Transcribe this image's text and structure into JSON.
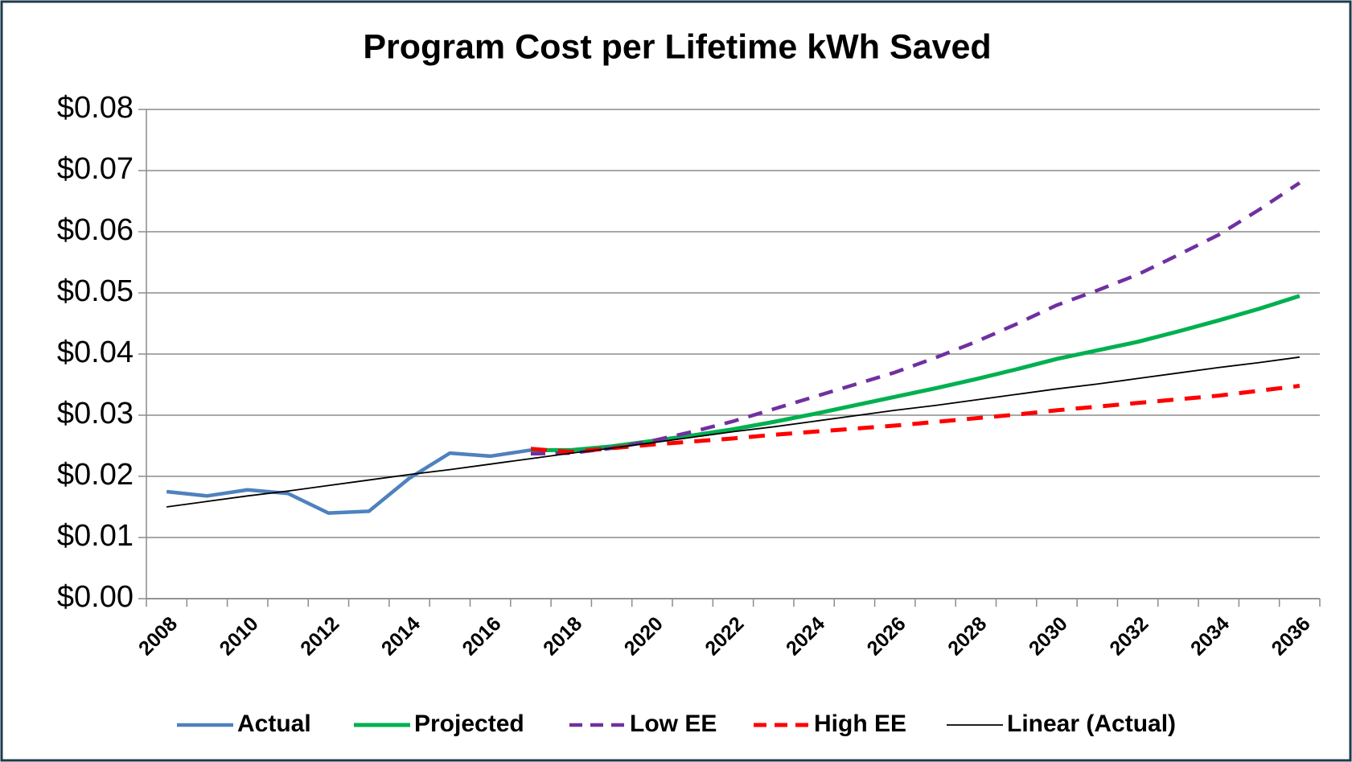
{
  "chart_data": {
    "type": "line",
    "title": "Program Cost per Lifetime kWh Saved",
    "categories": [
      "2008",
      null,
      "2010",
      null,
      "2012",
      null,
      "2014",
      null,
      "2016",
      null,
      "2018",
      null,
      "2020",
      null,
      "2022",
      null,
      "2024",
      null,
      "2026",
      null,
      "2028",
      null,
      "2030",
      null,
      "2032",
      null,
      "2034",
      null,
      "2036"
    ],
    "series": [
      {
        "name": "Actual",
        "color": "#4f81bd",
        "dashed": false,
        "linewidth": 4.5,
        "values": [
          0.0175,
          0.0168,
          0.0178,
          0.0172,
          0.014,
          0.0143,
          0.0197,
          0.0238,
          0.0233,
          0.0243,
          null,
          null,
          null,
          null,
          null,
          null,
          null,
          null,
          null,
          null,
          null,
          null,
          null,
          null,
          null,
          null,
          null,
          null,
          null
        ]
      },
      {
        "name": "Projected",
        "color": "#00b050",
        "dashed": false,
        "linewidth": 5,
        "values": [
          null,
          null,
          null,
          null,
          null,
          null,
          null,
          null,
          null,
          0.0243,
          0.0243,
          0.0249,
          0.0258,
          0.0267,
          0.0277,
          0.0289,
          0.0302,
          0.0316,
          0.033,
          0.0344,
          0.0359,
          0.0375,
          0.0392,
          0.0406,
          0.042,
          0.0437,
          0.0455,
          0.0474,
          0.0495
        ]
      },
      {
        "name": "Low EE",
        "color": "#7030a0",
        "dashed": true,
        "linewidth": 4.5,
        "values": [
          null,
          null,
          null,
          null,
          null,
          null,
          null,
          null,
          null,
          0.0237,
          0.0238,
          0.0246,
          0.0258,
          0.0273,
          0.029,
          0.031,
          0.033,
          0.035,
          0.037,
          0.0394,
          0.042,
          0.0449,
          0.048,
          0.0504,
          0.053,
          0.0562,
          0.0595,
          0.0636,
          0.068
        ]
      },
      {
        "name": "High EE",
        "color": "#ff0000",
        "dashed": true,
        "linewidth": 5,
        "values": [
          null,
          null,
          null,
          null,
          null,
          null,
          null,
          null,
          null,
          0.0245,
          0.024,
          0.0246,
          0.0252,
          0.0257,
          0.0262,
          0.0268,
          0.0273,
          0.0278,
          0.0283,
          0.0289,
          0.0295,
          0.0301,
          0.0308,
          0.0314,
          0.032,
          0.0326,
          0.0332,
          0.034,
          0.0348
        ]
      },
      {
        "name": "Linear (Actual)",
        "color": "#000000",
        "dashed": false,
        "linewidth": 1.8,
        "values": [
          0.015,
          0.0159,
          0.0168,
          0.0176,
          0.0185,
          0.0194,
          0.0203,
          0.0211,
          0.022,
          0.0229,
          0.0238,
          0.0246,
          0.0255,
          0.0264,
          0.0273,
          0.0281,
          0.029,
          0.0299,
          0.0308,
          0.0316,
          0.0325,
          0.0334,
          0.0343,
          0.0351,
          0.036,
          0.0369,
          0.0378,
          0.0386,
          0.0395
        ]
      }
    ],
    "ylim": [
      0,
      0.08
    ],
    "yticks": [
      {
        "value": 0,
        "label": "$0.00"
      },
      {
        "value": 0.01,
        "label": "$0.01"
      },
      {
        "value": 0.02,
        "label": "$0.02"
      },
      {
        "value": 0.03,
        "label": "$0.03"
      },
      {
        "value": 0.04,
        "label": "$0.04"
      },
      {
        "value": 0.05,
        "label": "$0.05"
      },
      {
        "value": 0.06,
        "label": "$0.06"
      },
      {
        "value": 0.07,
        "label": "$0.07"
      },
      {
        "value": 0.08,
        "label": "$0.08"
      }
    ],
    "grid": true,
    "legend": "bottom"
  }
}
